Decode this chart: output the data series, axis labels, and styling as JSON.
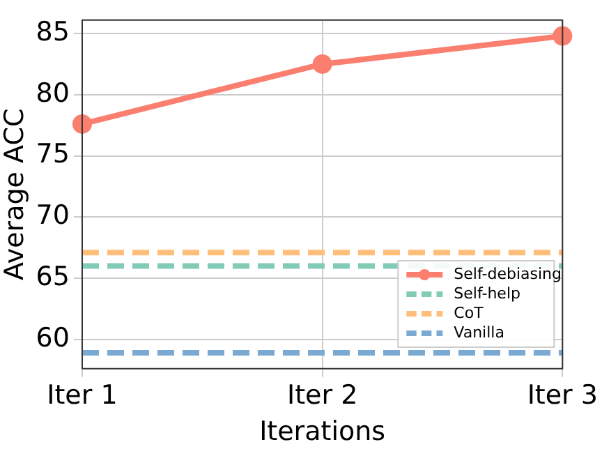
{
  "chart_data": {
    "type": "line",
    "xlabel": "Iterations",
    "ylabel": "Average ACC",
    "categories": [
      "Iter 1",
      "Iter 2",
      "Iter 3"
    ],
    "series": [
      {
        "name": "Self-debiasing",
        "color": "#fa7f6f",
        "values": [
          77.6,
          82.5,
          84.8
        ],
        "marker": "circle",
        "line_style": "solid"
      },
      {
        "name": "Self-help",
        "color": "#82cbb6",
        "values": [
          66.0,
          66.0,
          66.0
        ],
        "marker": "none",
        "line_style": "dashed"
      },
      {
        "name": "CoT",
        "color": "#ffbe7a",
        "values": [
          67.1,
          67.1,
          67.1
        ],
        "marker": "none",
        "line_style": "dashed"
      },
      {
        "name": "Vanilla",
        "color": "#7aa9d2",
        "values": [
          58.9,
          58.9,
          58.9
        ],
        "marker": "none",
        "line_style": "dashed"
      }
    ],
    "ylim": [
      57.6,
      86.1
    ],
    "yticks": [
      60,
      65,
      70,
      75,
      80,
      85
    ],
    "grid": true,
    "legend": "bottom right"
  }
}
